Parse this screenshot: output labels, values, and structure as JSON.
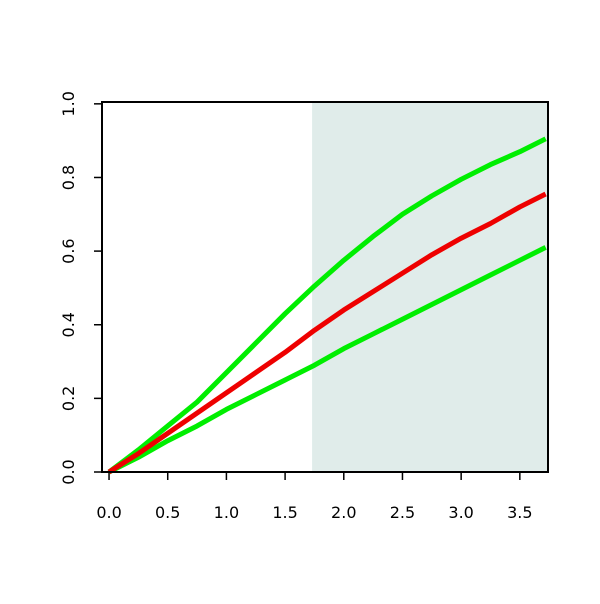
{
  "chart_data": {
    "type": "line",
    "x": [
      0,
      0.25,
      0.5,
      0.75,
      1,
      1.25,
      1.5,
      1.75,
      2,
      2.25,
      2.5,
      2.75,
      3,
      3.25,
      3.5,
      3.72
    ],
    "series": [
      {
        "color": "#00ee00",
        "values": [
          0,
          0.06,
          0.125,
          0.19,
          0.27,
          0.35,
          0.43,
          0.505,
          0.575,
          0.64,
          0.7,
          0.75,
          0.795,
          0.835,
          0.87,
          0.905
        ]
      },
      {
        "color": "#00ee00",
        "values": [
          0,
          0.04,
          0.085,
          0.125,
          0.17,
          0.21,
          0.25,
          0.29,
          0.335,
          0.375,
          0.415,
          0.455,
          0.495,
          0.535,
          0.575,
          0.61
        ]
      },
      {
        "color": "#ee0000",
        "values": [
          0,
          0.05,
          0.105,
          0.16,
          0.215,
          0.27,
          0.325,
          0.385,
          0.44,
          0.49,
          0.54,
          0.59,
          0.635,
          0.675,
          0.72,
          0.755
        ]
      }
    ],
    "shaded_from": 1.73,
    "shade_color": "#e0ecea",
    "xlim": [
      -0.06,
      3.74
    ],
    "ylim": [
      0,
      1.005
    ],
    "xticks": [
      {
        "value": 0,
        "label": "0.0"
      },
      0.5,
      {
        "value": 1,
        "label": "1.0"
      },
      1.5,
      {
        "value": 2,
        "label": "2.0"
      },
      2.5,
      {
        "value": 3,
        "label": "3.0"
      },
      3.5
    ],
    "yticks": [
      {
        "value": 0,
        "label": "0.0"
      },
      0.2,
      0.4,
      0.6,
      0.8,
      {
        "value": 1,
        "label": "1.0"
      }
    ]
  }
}
